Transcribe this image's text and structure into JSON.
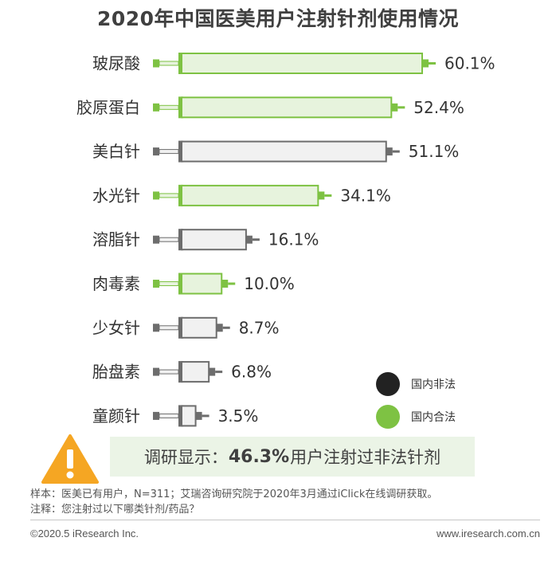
{
  "chart_data": {
    "type": "bar",
    "title": "2020年中国医美用户注射针剂使用情况",
    "categories": [
      "玻尿酸",
      "胶原蛋白",
      "美白针",
      "水光针",
      "溶脂针",
      "肉毒素",
      "少女针",
      "胎盘素",
      "童颜针"
    ],
    "values": [
      60.1,
      52.4,
      51.1,
      34.1,
      16.1,
      10.0,
      8.7,
      6.8,
      3.5
    ],
    "value_labels": [
      "60.1%",
      "52.4%",
      "51.1%",
      "34.1%",
      "16.1%",
      "10.0%",
      "8.7%",
      "6.8%",
      "3.5%"
    ],
    "status": [
      "legal",
      "legal",
      "illegal",
      "legal",
      "illegal",
      "legal",
      "illegal",
      "illegal",
      "illegal"
    ],
    "unit": "%",
    "xlim": [
      0,
      60.1
    ],
    "legend": [
      {
        "name": "国内非法",
        "key": "illegal",
        "color": "#222222"
      },
      {
        "name": "国内合法",
        "key": "legal",
        "color": "#7ec243"
      }
    ],
    "legend_position": "bottom-right",
    "grid": false
  },
  "colors": {
    "legal_fill": "#e7f3dd",
    "legal_stroke": "#7ec243",
    "illegal_fill": "#f1f1f1",
    "illegal_stroke": "#6d6d6d",
    "warning": "#f5a623"
  },
  "callout": {
    "prefix": "调研显示：",
    "value": "46.3%",
    "suffix": "用户注射过非法针剂"
  },
  "notes": {
    "sample": "样本：医美已有用户，N=311；艾瑞咨询研究院于2020年3月通过iClick在线调研获取。",
    "note": "注释：您注射过以下哪类针剂/药品？"
  },
  "footer": {
    "copyright": "©2020.5 iResearch Inc.",
    "site": "www.iresearch.com.cn"
  }
}
